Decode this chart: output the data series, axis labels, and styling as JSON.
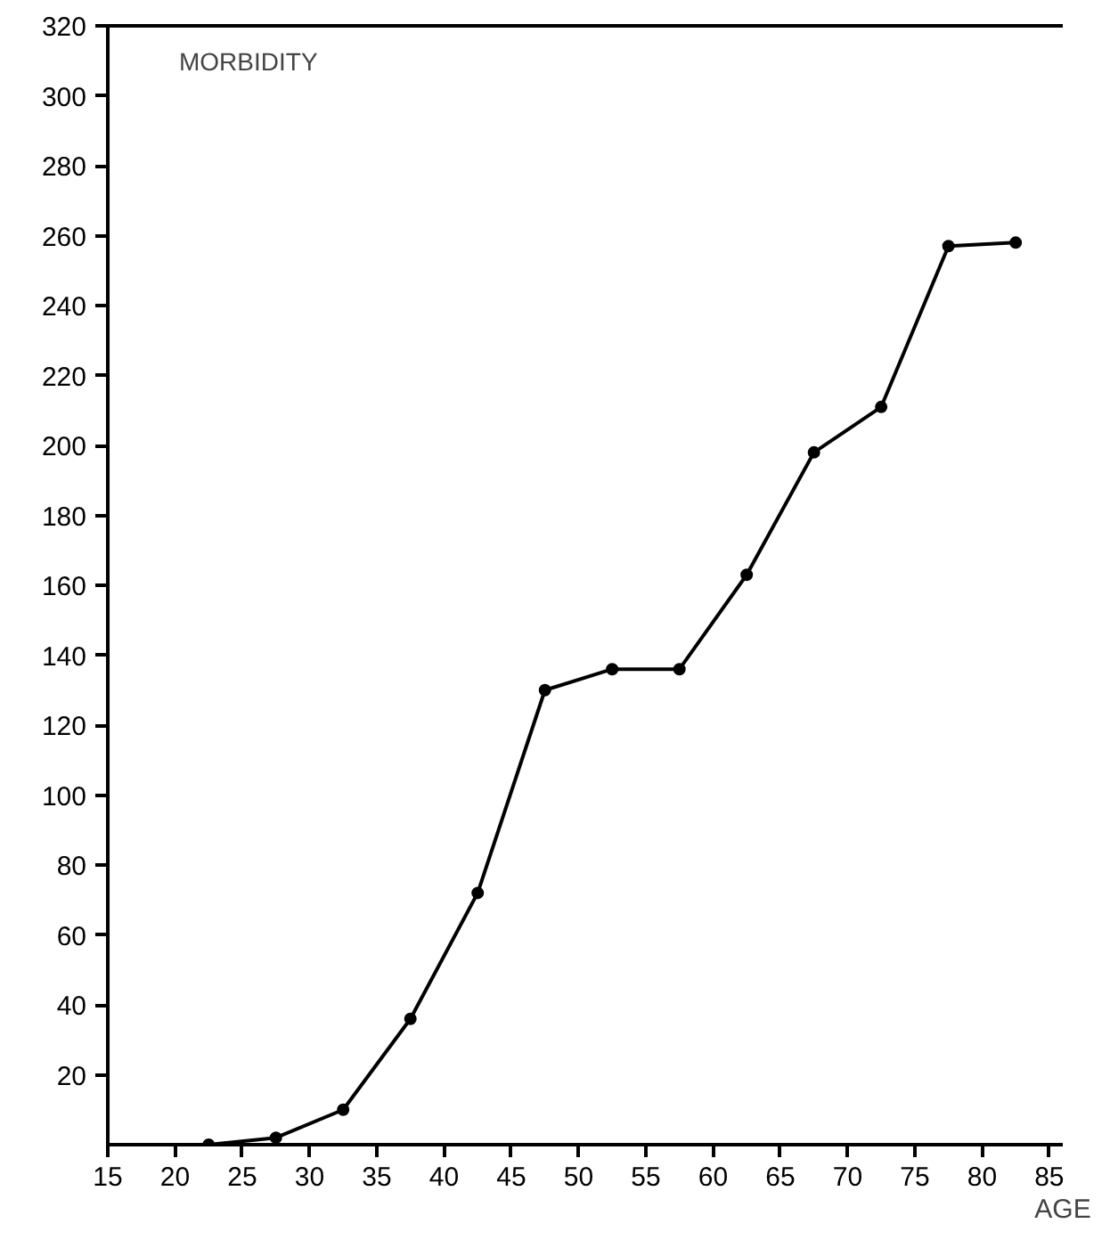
{
  "chart_data": {
    "type": "line",
    "xlabel": "AGE",
    "ylabel": "MORBIDITY",
    "x": [
      22.5,
      27.5,
      32.5,
      37.5,
      42.5,
      47.5,
      52.5,
      57.5,
      62.5,
      67.5,
      72.5,
      77.5,
      82.5
    ],
    "values": [
      0,
      2,
      10,
      36,
      72,
      130,
      136,
      136,
      163,
      198,
      211,
      257,
      258
    ],
    "color": "#000000",
    "marker": "circle",
    "line_style": "solid",
    "grid": false,
    "xlim": [
      15,
      86
    ],
    "ylim": [
      0,
      320
    ],
    "xticks": [
      15,
      20,
      25,
      30,
      35,
      40,
      45,
      50,
      55,
      60,
      65,
      70,
      75,
      80,
      85
    ],
    "yticks": [
      20,
      40,
      60,
      80,
      100,
      120,
      140,
      160,
      180,
      200,
      220,
      240,
      260,
      280,
      300,
      320
    ]
  }
}
